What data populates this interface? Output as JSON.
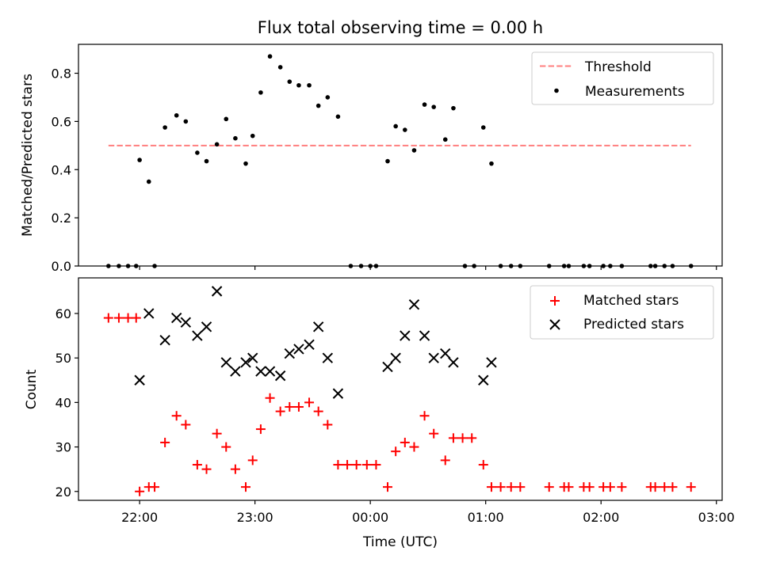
{
  "figure": {
    "title": "Flux total observing time = 0.00 h",
    "xlabel": "Time (UTC)",
    "x_ticks": [
      "22:00",
      "23:00",
      "00:00",
      "01:00",
      "02:00",
      "03:00"
    ]
  },
  "chart_data": [
    {
      "type": "scatter",
      "title": "Flux total observing time = 0.00 h",
      "xlabel": "",
      "ylabel": "Matched/Predicted stars",
      "x_unit": "hours UTC (24 = 00:00 next day)",
      "xlim": [
        21.47,
        27.05
      ],
      "ylim": [
        0.0,
        0.92
      ],
      "y_ticks": [
        "0.0",
        "0.2",
        "0.4",
        "0.6",
        "0.8"
      ],
      "grid": false,
      "legend_placement": "top-right",
      "series": [
        {
          "name": "Threshold",
          "type": "line",
          "style": "dashed",
          "color": "#ff7f7f",
          "x": [
            21.73,
            26.78
          ],
          "y": [
            0.5,
            0.5
          ]
        },
        {
          "name": "Measurements",
          "type": "scatter",
          "marker": "dot",
          "color": "#000000",
          "x": [
            21.73,
            21.82,
            21.9,
            21.97,
            22.0,
            22.08,
            22.13,
            22.22,
            22.32,
            22.4,
            22.5,
            22.58,
            22.67,
            22.75,
            22.83,
            22.92,
            22.98,
            23.05,
            23.13,
            23.22,
            23.3,
            23.38,
            23.47,
            23.55,
            23.63,
            23.72,
            23.83,
            23.92,
            24.0,
            24.05,
            24.15,
            24.22,
            24.3,
            24.38,
            24.47,
            24.55,
            24.65,
            24.72,
            24.82,
            24.9,
            24.98,
            25.05,
            25.13,
            25.22,
            25.3,
            25.55,
            25.68,
            25.72,
            25.85,
            25.9,
            26.02,
            26.08,
            26.18,
            26.43,
            26.47,
            26.55,
            26.62,
            26.78
          ],
          "y": [
            0.0,
            0.0,
            0.0,
            0.0,
            0.44,
            0.35,
            0.0,
            0.575,
            0.625,
            0.6,
            0.47,
            0.435,
            0.505,
            0.61,
            0.53,
            0.425,
            0.54,
            0.72,
            0.87,
            0.825,
            0.765,
            0.75,
            0.75,
            0.665,
            0.7,
            0.62,
            0.0,
            0.0,
            0.0,
            0.0,
            0.435,
            0.58,
            0.565,
            0.48,
            0.67,
            0.66,
            0.525,
            0.655,
            0.0,
            0.0,
            0.575,
            0.425,
            0.0,
            0.0,
            0.0,
            0.0,
            0.0,
            0.0,
            0.0,
            0.0,
            0.0,
            0.0,
            0.0,
            0.0,
            0.0,
            0.0,
            0.0,
            0.0
          ]
        }
      ]
    },
    {
      "type": "scatter",
      "title": "",
      "xlabel": "Time (UTC)",
      "ylabel": "Count",
      "x_unit": "hours UTC (24 = 00:00 next day)",
      "xlim": [
        21.47,
        27.05
      ],
      "ylim": [
        18,
        68
      ],
      "y_ticks": [
        "20",
        "30",
        "40",
        "50",
        "60"
      ],
      "grid": false,
      "legend_placement": "top-right",
      "series": [
        {
          "name": "Matched stars",
          "type": "scatter",
          "marker": "plus",
          "color": "#ff0000",
          "x": [
            21.73,
            21.82,
            21.9,
            21.97,
            22.0,
            22.08,
            22.13,
            22.22,
            22.32,
            22.4,
            22.5,
            22.58,
            22.67,
            22.75,
            22.83,
            22.92,
            22.98,
            23.05,
            23.13,
            23.22,
            23.3,
            23.38,
            23.47,
            23.55,
            23.63,
            23.72,
            23.8,
            23.88,
            23.97,
            24.05,
            24.15,
            24.22,
            24.3,
            24.38,
            24.47,
            24.55,
            24.65,
            24.72,
            24.8,
            24.88,
            24.98,
            25.05,
            25.13,
            25.22,
            25.3,
            25.55,
            25.68,
            25.72,
            25.85,
            25.9,
            26.02,
            26.08,
            26.18,
            26.43,
            26.47,
            26.55,
            26.62,
            26.78
          ],
          "y": [
            59,
            59,
            59,
            59,
            20,
            21,
            21,
            31,
            37,
            35,
            26,
            25,
            33,
            30,
            25,
            21,
            27,
            34,
            41,
            38,
            39,
            39,
            40,
            38,
            35,
            26,
            26,
            26,
            26,
            26,
            21,
            29,
            31,
            30,
            37,
            33,
            27,
            32,
            32,
            32,
            26,
            21,
            21,
            21,
            21,
            21,
            21,
            21,
            21,
            21,
            21,
            21,
            21,
            21,
            21,
            21,
            21,
            21
          ]
        },
        {
          "name": "Predicted stars",
          "type": "scatter",
          "marker": "x",
          "color": "#000000",
          "x": [
            22.0,
            22.08,
            22.22,
            22.32,
            22.4,
            22.5,
            22.58,
            22.67,
            22.75,
            22.83,
            22.92,
            22.98,
            23.05,
            23.13,
            23.22,
            23.3,
            23.38,
            23.47,
            23.55,
            23.63,
            23.72,
            24.15,
            24.22,
            24.3,
            24.38,
            24.47,
            24.55,
            24.65,
            24.72,
            24.98,
            25.05
          ],
          "y": [
            45,
            60,
            54,
            59,
            58,
            55,
            57,
            65,
            49,
            47,
            49,
            50,
            47,
            47,
            46,
            51,
            52,
            53,
            57,
            50,
            42,
            48,
            50,
            55,
            62,
            55,
            50,
            51,
            49,
            45,
            49
          ]
        }
      ]
    }
  ]
}
